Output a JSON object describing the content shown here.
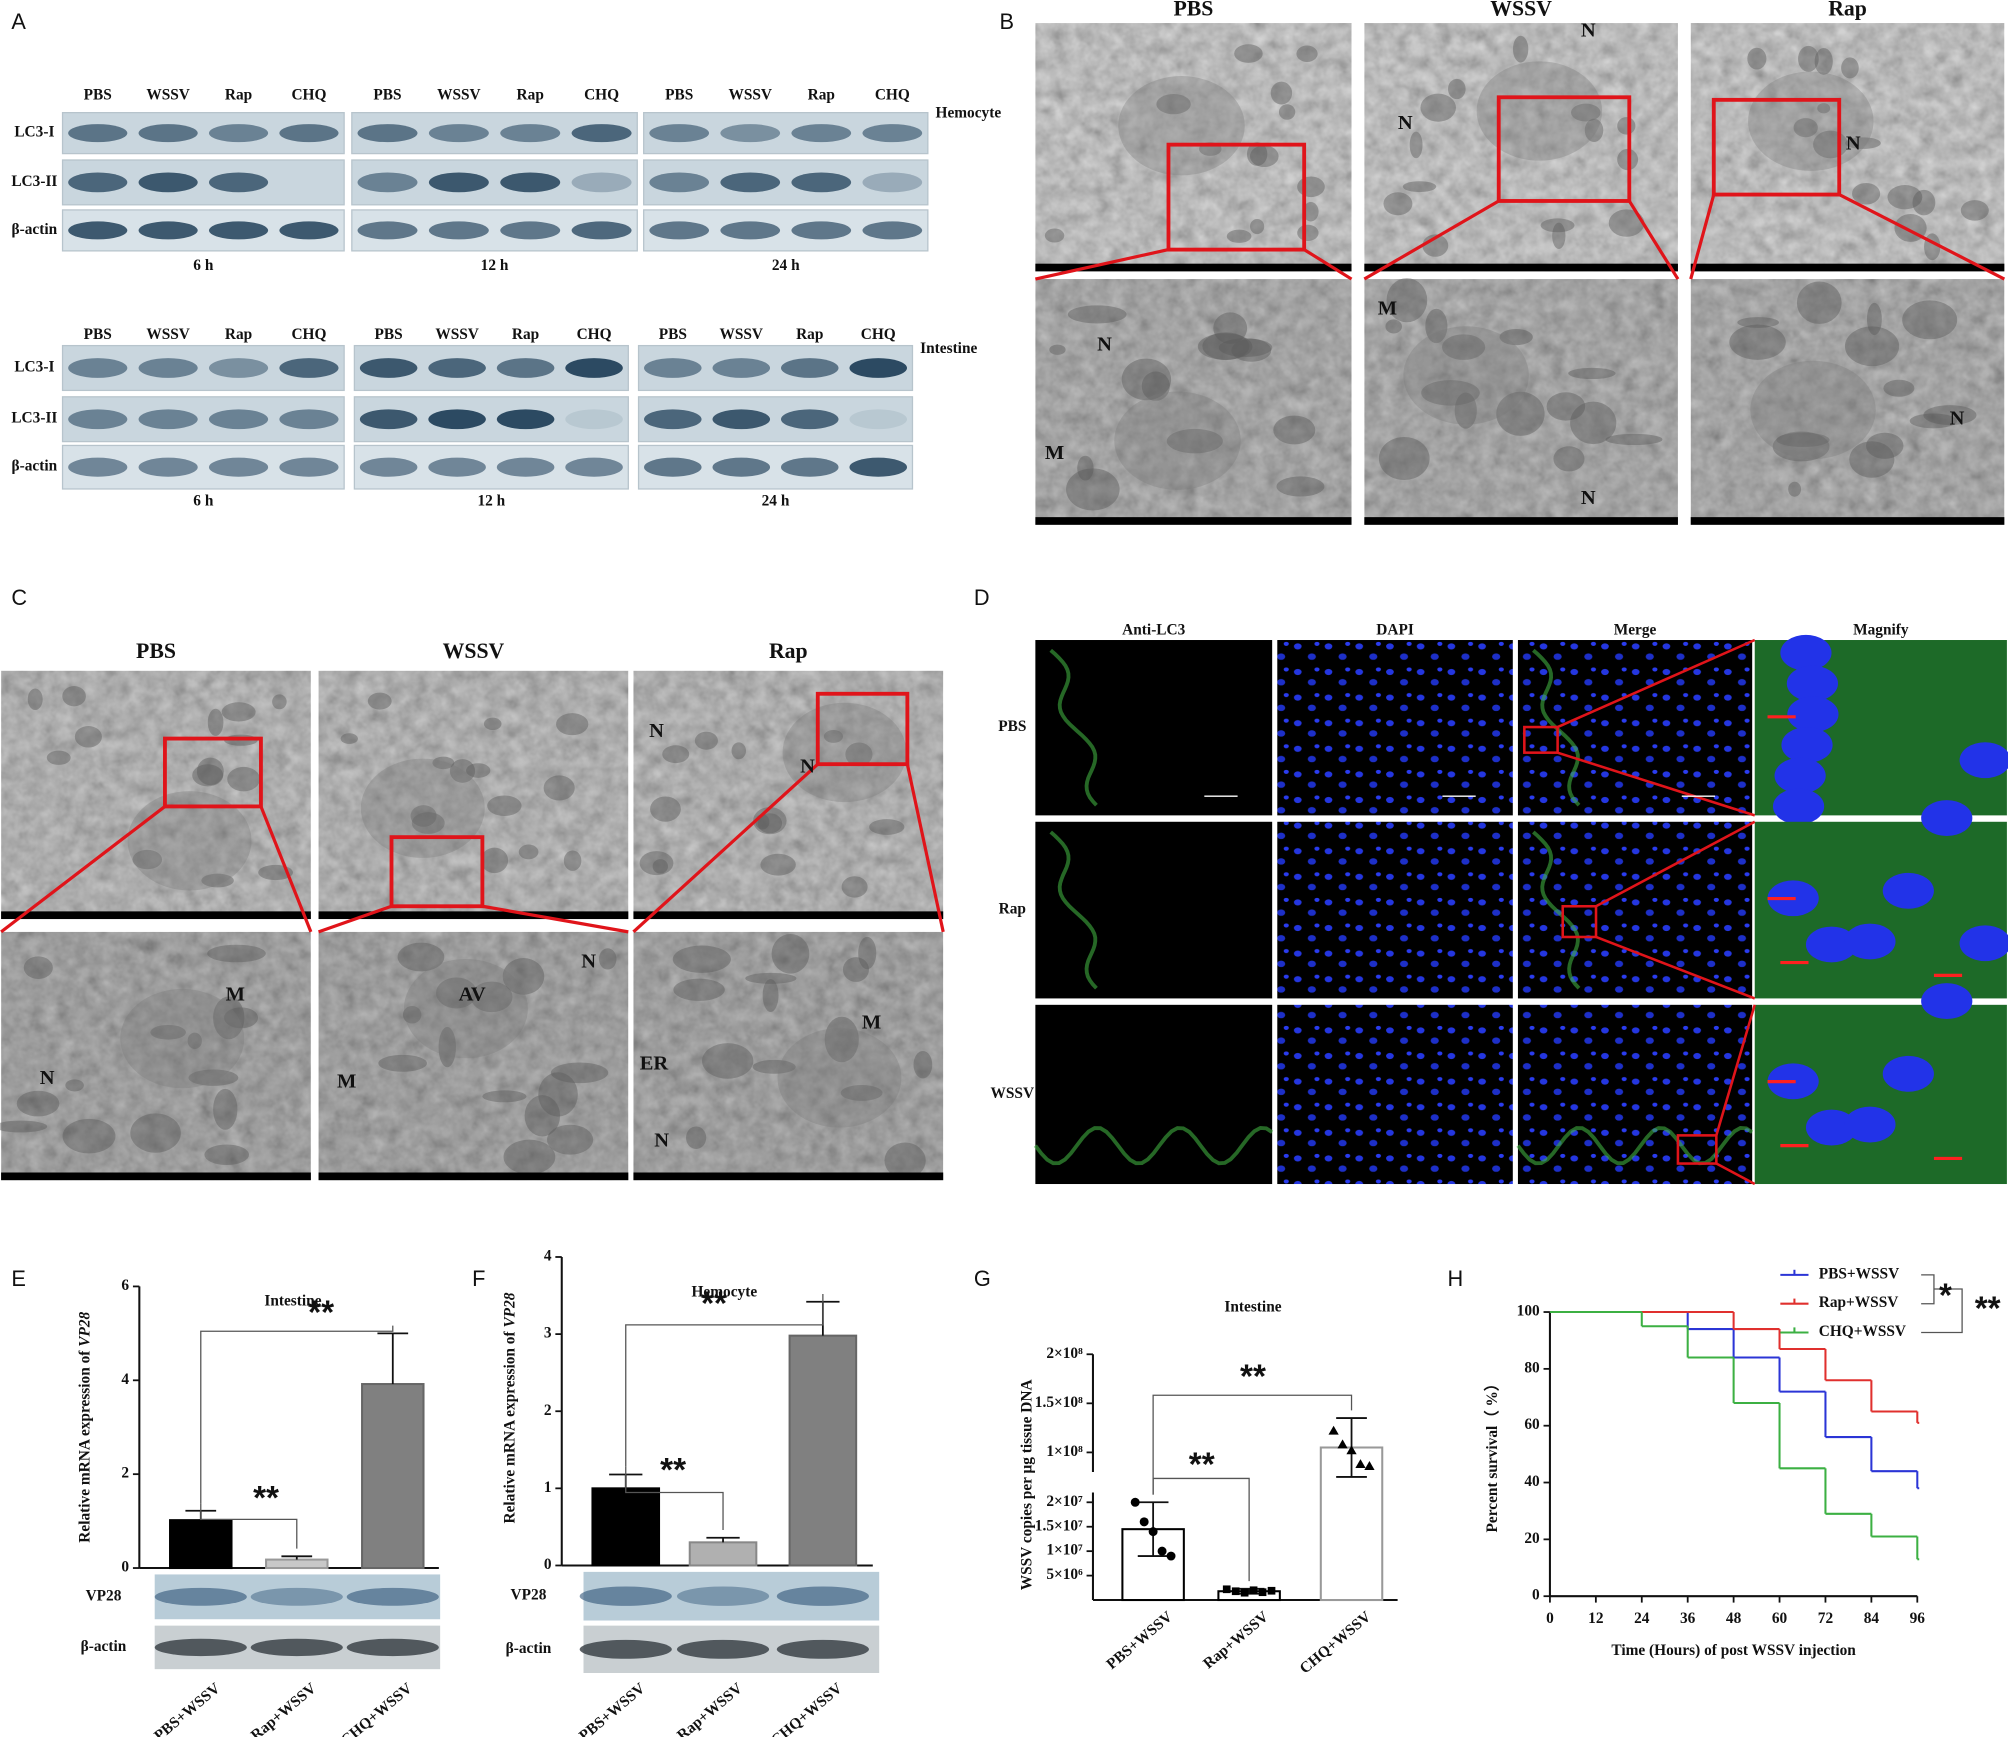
{
  "panel_letters": [
    "A",
    "B",
    "C",
    "D",
    "E",
    "F",
    "G",
    "H"
  ],
  "blots": {
    "lanes": [
      "PBS",
      "WSSV",
      "Rap",
      "CHQ"
    ],
    "rows": [
      "LC3-I",
      "LC3-II",
      "β-actin"
    ],
    "times": [
      "6 h",
      "12 h",
      "24 h"
    ],
    "tissues": [
      "Hemocyte",
      "Intestine"
    ]
  },
  "tem_hemocyte": {
    "columns": [
      "PBS",
      "WSSV",
      "Rap"
    ],
    "markers": [
      "N",
      "N",
      "N",
      "N",
      "M",
      "M",
      "N",
      "N"
    ]
  },
  "tem_intestine": {
    "columns": [
      "PBS",
      "WSSV",
      "Rap"
    ],
    "markers": [
      "N",
      "N",
      "M",
      "N",
      "AV",
      "N",
      "M",
      "M",
      "ER",
      "N"
    ]
  },
  "immunofluorescence": {
    "columns": [
      "Anti-LC3",
      "DAPI",
      "Merge",
      "Magnify"
    ],
    "rows": [
      "PBS",
      "Rap",
      "WSSV"
    ]
  },
  "chart_data": [
    {
      "type": "bar",
      "title": "Intestine",
      "y_label": "Relative mRNA expression of ",
      "y_label_italic": "VP28",
      "categories": [
        "PBS+WSSV",
        "Rap+WSSV",
        "CHQ+WSSV"
      ],
      "values": [
        1.02,
        0.18,
        3.92
      ],
      "errors": [
        0.2,
        0.07,
        1.08
      ],
      "error_bars": "up",
      "colors": [
        "#000000",
        "#c8c8c8",
        "#808080"
      ],
      "edge_colors": [
        "#000000",
        "#999999",
        "#666666"
      ],
      "ylim": [
        0,
        6
      ],
      "yticks": [
        0,
        2,
        4,
        6
      ],
      "annotations": [
        "**",
        "**"
      ],
      "blot_rows": [
        "VP28",
        "β-actin"
      ]
    },
    {
      "type": "bar",
      "title": "Hemocyte",
      "y_label": "Relative mRNA expression of ",
      "y_label_italic": "VP28",
      "categories": [
        "PBS+WSSV",
        "Rap+WSSV",
        "CHQ+WSSV"
      ],
      "values": [
        1.0,
        0.3,
        2.98
      ],
      "errors": [
        0.18,
        0.06,
        0.44
      ],
      "error_bars": "up",
      "colors": [
        "#000000",
        "#b0b0b0",
        "#808080"
      ],
      "edge_colors": [
        "#000000",
        "#888888",
        "#666666"
      ],
      "ylim": [
        0,
        4
      ],
      "yticks": [
        0,
        1,
        2,
        3,
        4
      ],
      "annotations": [
        "**",
        "**"
      ],
      "blot_rows": [
        "VP28",
        "β-actin"
      ]
    },
    {
      "type": "bar",
      "title": "Intestine",
      "y_label": "WSSV copies per μg tissue DNA",
      "categories": [
        "PBS+WSSV",
        "Rap+WSSV",
        "CHQ+WSSV"
      ],
      "values": [
        14500000,
        1800000,
        105000000
      ],
      "errors": [
        5500000,
        500000,
        30000000
      ],
      "error_bars": "both",
      "colors": [
        "#ffffff",
        "#ffffff",
        "#ffffff"
      ],
      "edge_colors": [
        "#000000",
        "#000000",
        "#999999"
      ],
      "points": [
        [
          20000000,
          16000000,
          14000000,
          10000000,
          9000000
        ],
        [
          2200000,
          1800000,
          1500000,
          2000000,
          1600000,
          1900000
        ],
        [
          122000000,
          108000000,
          102000000,
          88000000,
          86000000
        ]
      ],
      "point_shapes": [
        "circle",
        "square",
        "triangle"
      ],
      "ylim": [
        0,
        200000000
      ],
      "axis_break": [
        22000000,
        80000000
      ],
      "yticks": [
        {
          "value": 5000000,
          "label": "5×10⁶"
        },
        {
          "value": 10000000,
          "label": "1×10⁷"
        },
        {
          "value": 15000000,
          "label": "1.5×10⁷"
        },
        {
          "value": 20000000,
          "label": "2×10⁷"
        },
        {
          "value": 100000000,
          "label": "1×10⁸"
        },
        {
          "value": 150000000,
          "label": "1.5×10⁸"
        },
        {
          "value": 200000000,
          "label": "2×10⁸"
        }
      ],
      "annotations": [
        "**",
        "**"
      ]
    },
    {
      "type": "line",
      "step": true,
      "x_label": "Time (Hours) of post WSSV injection",
      "y_label": "Percent survival（ %）",
      "x": [
        0,
        24,
        36,
        48,
        60,
        72,
        84,
        96
      ],
      "series": [
        {
          "name": "PBS+WSSV",
          "color": "#2b35d6",
          "values": [
            100,
            100,
            94,
            84,
            72,
            56,
            44,
            38
          ]
        },
        {
          "name": "Rap+WSSV",
          "color": "#e0302e",
          "values": [
            100,
            100,
            100,
            94,
            87,
            76,
            65,
            61
          ]
        },
        {
          "name": "CHQ+WSSV",
          "color": "#3cb043",
          "values": [
            100,
            95,
            84,
            68,
            45,
            29,
            21,
            13
          ]
        }
      ],
      "xlim": [
        0,
        96
      ],
      "xticks": [
        0,
        12,
        24,
        36,
        48,
        60,
        72,
        84,
        96
      ],
      "ylim": [
        0,
        100
      ],
      "yticks": [
        0,
        20,
        40,
        60,
        80,
        100
      ],
      "legend": "top",
      "annotations": [
        "*",
        "**"
      ]
    }
  ]
}
